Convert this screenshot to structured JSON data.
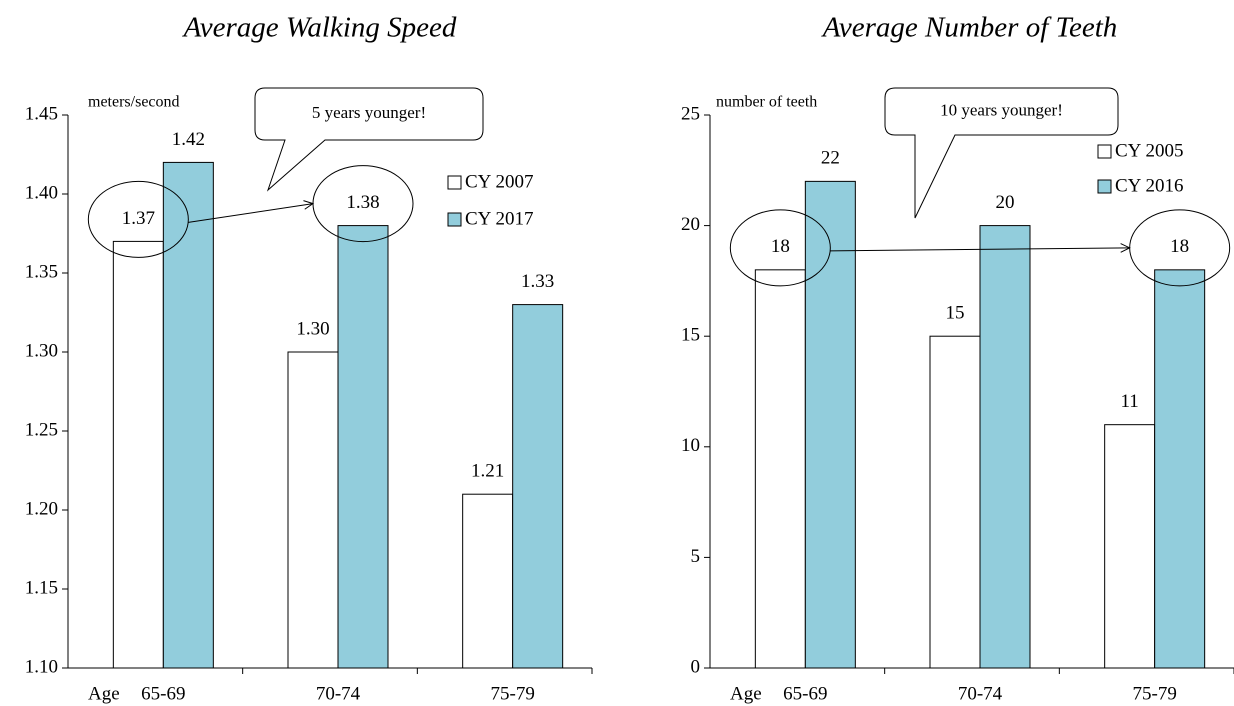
{
  "chart_data": [
    {
      "type": "bar",
      "title": "Average Walking Speed",
      "y_label": "meters/second",
      "x_label": "Age",
      "annotation": "5 years younger!",
      "categories": [
        "65-69",
        "70-74",
        "75-79"
      ],
      "series": [
        {
          "name": "CY 2007",
          "color": "#ffffff",
          "values": [
            1.37,
            1.3,
            1.21
          ],
          "value_labels": [
            "1.37",
            "1.30",
            "1.21"
          ]
        },
        {
          "name": "CY 2017",
          "color": "#92cddc",
          "values": [
            1.42,
            1.38,
            1.33
          ],
          "value_labels": [
            "1.42",
            "1.38",
            "1.33"
          ]
        }
      ],
      "ylim": [
        1.1,
        1.45
      ],
      "yticks": [
        {
          "value": 1.1,
          "label": "1.10"
        },
        1.15,
        {
          "value": 1.2,
          "label": "1.20"
        },
        1.25,
        {
          "value": 1.3,
          "label": "1.30"
        },
        1.35,
        {
          "value": 1.4,
          "label": "1.40"
        },
        1.45
      ]
    },
    {
      "type": "bar",
      "title": "Average Number of Teeth",
      "y_label": "number  of teeth",
      "x_label": "Age",
      "annotation": "10 years younger!",
      "categories": [
        "65-69",
        "70-74",
        "75-79"
      ],
      "series": [
        {
          "name": "CY 2005",
          "color": "#ffffff",
          "values": [
            18,
            15,
            11
          ]
        },
        {
          "name": "CY 2016",
          "color": "#92cddc",
          "values": [
            22,
            20,
            18
          ]
        }
      ],
      "ylim": [
        0,
        25
      ],
      "yticks": [
        0,
        5,
        10,
        15,
        20,
        25
      ]
    }
  ]
}
